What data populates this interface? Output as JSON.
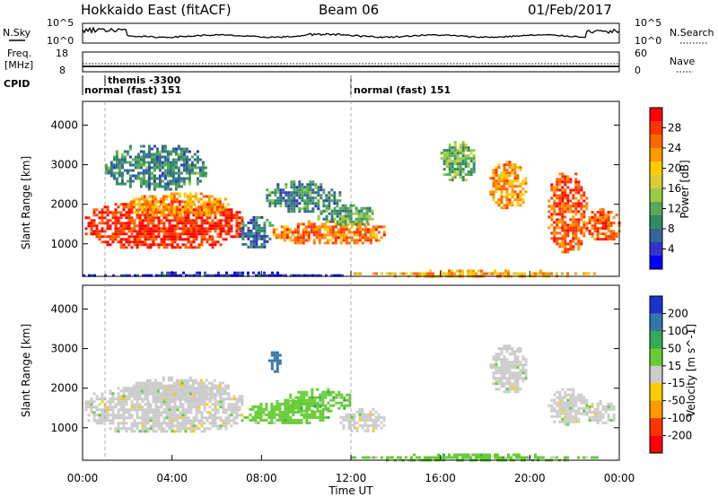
{
  "header": {
    "site": "Hokkaido East (fitACF)",
    "beam": "Beam 06",
    "date": "01/Feb/2017"
  },
  "nsky_panel": {
    "left_label": "N.Sky",
    "left_ticks": [
      "10^5",
      "10^0"
    ],
    "right_label": "N.Search",
    "right_ticks": [
      "10^5",
      "10^0"
    ]
  },
  "freq_panel": {
    "left_label_1": "Freq.",
    "left_label_2": "[MHz]",
    "left_ticks": [
      "18",
      "8"
    ],
    "right_label": "Nave",
    "right_ticks": [
      "60",
      "0"
    ]
  },
  "cpid_panel": {
    "label": "CPID",
    "segments": [
      {
        "text": "normal (fast) 151"
      },
      {
        "text": "themis -3300"
      },
      {
        "text": "normal (fast) 151"
      }
    ]
  },
  "chart_data": [
    {
      "type": "heatmap",
      "name": "power",
      "ylabel": "Slant Range [km]",
      "xlabel": "Time UT",
      "x_ticks": [
        "00:00",
        "04:00",
        "08:00",
        "12:00",
        "16:00",
        "20:00",
        "00:00"
      ],
      "x_range_hours": [
        0,
        24
      ],
      "y_ticks": [
        1000,
        2000,
        3000,
        4000
      ],
      "y_range_km": [
        180,
        4600
      ],
      "colorbar": {
        "label": "Power [dB]",
        "ticks": [
          "28",
          "24",
          "20",
          "16",
          "12",
          "8",
          "4"
        ],
        "colors": [
          "#ff0000",
          "#ff3300",
          "#ff6600",
          "#ff9900",
          "#ffcc00",
          "#ddcc33",
          "#99cc44",
          "#55aa55",
          "#338866",
          "#336699",
          "#3333cc",
          "#0000ff"
        ]
      },
      "blobs": [
        {
          "t0": 0.1,
          "t1": 7.2,
          "r0": 900,
          "r1": 2100,
          "value": 27
        },
        {
          "t0": 2.0,
          "t1": 6.5,
          "r0": 1700,
          "r1": 2300,
          "value": 22
        },
        {
          "t0": 1.0,
          "t1": 5.5,
          "r0": 2400,
          "r1": 3500,
          "value": 10
        },
        {
          "t0": 7.0,
          "t1": 8.5,
          "r0": 900,
          "r1": 1700,
          "value": 9
        },
        {
          "t0": 8.2,
          "t1": 11.5,
          "r0": 1800,
          "r1": 2600,
          "value": 10
        },
        {
          "t0": 8.5,
          "t1": 13.5,
          "r0": 1000,
          "r1": 1600,
          "value": 24
        },
        {
          "t0": 10.5,
          "t1": 13.0,
          "r0": 1500,
          "r1": 2000,
          "value": 12
        },
        {
          "t0": 16.0,
          "t1": 17.5,
          "r0": 2600,
          "r1": 3600,
          "value": 13
        },
        {
          "t0": 18.2,
          "t1": 19.8,
          "r0": 1900,
          "r1": 3100,
          "value": 22
        },
        {
          "t0": 20.8,
          "t1": 22.5,
          "r0": 800,
          "r1": 2800,
          "value": 25
        },
        {
          "t0": 22.5,
          "t1": 24.0,
          "r0": 1100,
          "r1": 1900,
          "value": 25
        },
        {
          "t0": 12.0,
          "t1": 23.0,
          "r0": 200,
          "r1": 350,
          "value": 20
        },
        {
          "t0": 0.0,
          "t1": 12.0,
          "r0": 200,
          "r1": 300,
          "value": 6
        }
      ]
    },
    {
      "type": "heatmap",
      "name": "velocity",
      "ylabel": "Slant Range [km]",
      "xlabel": "Time UT",
      "x_ticks": [
        "00:00",
        "04:00",
        "08:00",
        "12:00",
        "16:00",
        "20:00",
        "00:00"
      ],
      "x_range_hours": [
        0,
        24
      ],
      "y_ticks": [
        1000,
        2000,
        3000,
        4000
      ],
      "y_range_km": [
        180,
        4600
      ],
      "colorbar": {
        "label": "Velocity [m s^-1]",
        "ticks": [
          "200",
          "100",
          "50",
          "15",
          "-15",
          "-50",
          "-100",
          "-200"
        ],
        "colors": [
          "#1a33cc",
          "#3377aa",
          "#33aa55",
          "#66cc33",
          "#cccccc",
          "#ffcc00",
          "#ff9900",
          "#ff3300",
          "#ff0000"
        ]
      },
      "blobs": [
        {
          "t0": 0.1,
          "t1": 7.2,
          "r0": 900,
          "r1": 2100,
          "value": 0
        },
        {
          "t0": 2.0,
          "t1": 6.5,
          "r0": 1700,
          "r1": 2300,
          "value": 0
        },
        {
          "t0": 7.2,
          "t1": 11.0,
          "r0": 1100,
          "r1": 1700,
          "value": 40
        },
        {
          "t0": 9.0,
          "t1": 12.0,
          "r0": 1400,
          "r1": 2000,
          "value": 60
        },
        {
          "t0": 11.5,
          "t1": 13.5,
          "r0": 900,
          "r1": 1500,
          "value": 0
        },
        {
          "t0": 18.2,
          "t1": 19.8,
          "r0": 1900,
          "r1": 3100,
          "value": 0
        },
        {
          "t0": 20.8,
          "t1": 22.5,
          "r0": 1100,
          "r1": 2000,
          "value": 0
        },
        {
          "t0": 22.5,
          "t1": 23.8,
          "r0": 1100,
          "r1": 1700,
          "value": 0
        },
        {
          "t0": 12.0,
          "t1": 23.0,
          "r0": 200,
          "r1": 350,
          "value": 30
        },
        {
          "t0": 8.3,
          "t1": 8.8,
          "r0": 2400,
          "r1": 3000,
          "value": 150
        }
      ]
    }
  ]
}
